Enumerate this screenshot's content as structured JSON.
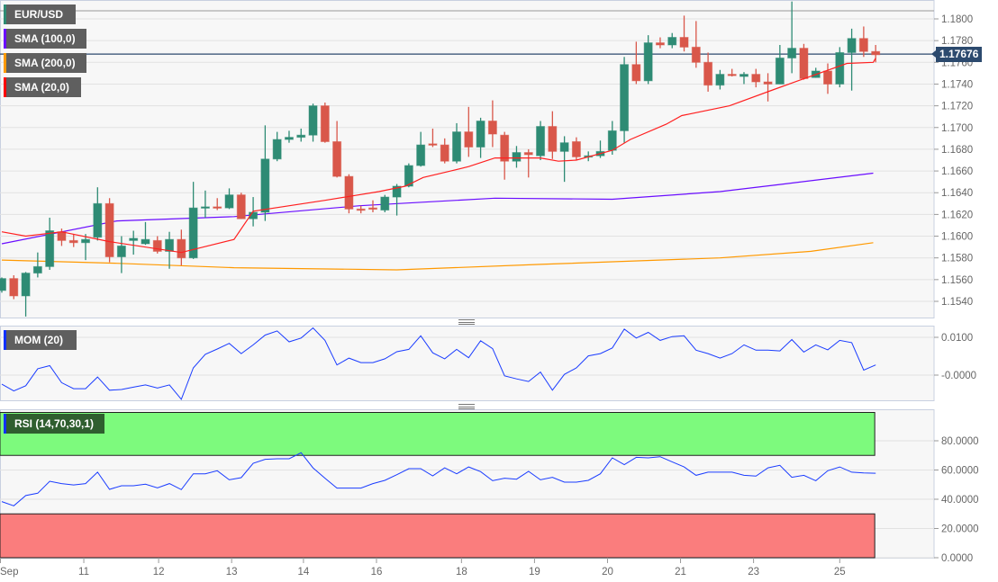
{
  "legend": {
    "pair": {
      "label": "EUR/USD",
      "color": "#2e8b74"
    },
    "sma100": {
      "label": "SMA (100,0)",
      "color": "#6a0dff"
    },
    "sma200": {
      "label": "SMA (200,0)",
      "color": "#ff9900"
    },
    "sma20": {
      "label": "SMA (20,0)",
      "color": "#ff0000"
    },
    "mom": {
      "label": "MOM (20)",
      "color": "#1030ff"
    },
    "rsi": {
      "label": "RSI (14,70,30,1)",
      "color": "#1030ff"
    }
  },
  "current_price": "1.17676",
  "chart_data": {
    "type": "candlestick",
    "title": "EUR/USD",
    "colors": {
      "up": "#2e8b74",
      "down": "#d9574a",
      "sma20": "#ff2020",
      "sma100": "#6a0dff",
      "sma200": "#ff9900",
      "mom": "#1a3cff",
      "rsi": "#1a3cff",
      "overbought": "#7dfa7d",
      "oversold": "#fa7d7d",
      "price_line": "#2c4a6e"
    },
    "price_axis": {
      "ylim": [
        1.153,
        1.1815
      ],
      "ticks": [
        "1.1800",
        "1.1780",
        "1.1760",
        "1.1740",
        "1.1720",
        "1.1700",
        "1.1680",
        "1.1660",
        "1.1640",
        "1.1620",
        "1.1600",
        "1.1580",
        "1.1560",
        "1.1540"
      ]
    },
    "high_line": 1.18075,
    "last_close": 1.17676,
    "x_ticks": [
      {
        "label": "Sep",
        "at": -0.15
      },
      {
        "label": "11",
        "at": 6.85
      },
      {
        "label": "12",
        "at": 13.1
      },
      {
        "label": "13",
        "at": 19.2
      },
      {
        "label": "14",
        "at": 25.2
      },
      {
        "label": "16",
        "at": 31.3
      },
      {
        "label": "18",
        "at": 38.4
      },
      {
        "label": "19",
        "at": 44.5
      },
      {
        "label": "20",
        "at": 50.6
      },
      {
        "label": "21",
        "at": 56.7
      },
      {
        "label": "23",
        "at": 62.8
      },
      {
        "label": "25",
        "at": 70
      }
    ],
    "ohlc": [
      [
        1.155,
        1.1562,
        1.1548,
        1.1561
      ],
      [
        1.1561,
        1.1564,
        1.1542,
        1.1545
      ],
      [
        1.1545,
        1.1567,
        1.1526,
        1.1566
      ],
      [
        1.1566,
        1.1585,
        1.1562,
        1.1572
      ],
      [
        1.1572,
        1.1617,
        1.1569,
        1.1605
      ],
      [
        1.1604,
        1.1607,
        1.1591,
        1.1596
      ],
      [
        1.1596,
        1.1602,
        1.159,
        1.1594
      ],
      [
        1.1594,
        1.1602,
        1.1578,
        1.1597
      ],
      [
        1.1599,
        1.1645,
        1.1596,
        1.163
      ],
      [
        1.163,
        1.1635,
        1.1576,
        1.1581
      ],
      [
        1.1581,
        1.16,
        1.1566,
        1.1591
      ],
      [
        1.1596,
        1.1605,
        1.1583,
        1.1598
      ],
      [
        1.1593,
        1.1613,
        1.1592,
        1.1597
      ],
      [
        1.1596,
        1.16,
        1.1584,
        1.1586
      ],
      [
        1.1586,
        1.1604,
        1.157,
        1.1597
      ],
      [
        1.1597,
        1.1606,
        1.1573,
        1.158
      ],
      [
        1.158,
        1.165,
        1.1579,
        1.1626
      ],
      [
        1.1626,
        1.1642,
        1.1617,
        1.1627
      ],
      [
        1.1627,
        1.1635,
        1.1624,
        1.1626
      ],
      [
        1.1626,
        1.1644,
        1.1625,
        1.1638
      ],
      [
        1.1638,
        1.164,
        1.1616,
        1.1616
      ],
      [
        1.1616,
        1.1636,
        1.1609,
        1.1622
      ],
      [
        1.1622,
        1.1702,
        1.1614,
        1.1671
      ],
      [
        1.1671,
        1.1696,
        1.1669,
        1.1689
      ],
      [
        1.1689,
        1.1697,
        1.1686,
        1.1691
      ],
      [
        1.1691,
        1.1699,
        1.1687,
        1.1693
      ],
      [
        1.1693,
        1.1722,
        1.1687,
        1.172
      ],
      [
        1.172,
        1.1723,
        1.1686,
        1.1687
      ],
      [
        1.1687,
        1.1706,
        1.1654,
        1.1655
      ],
      [
        1.1655,
        1.1657,
        1.1621,
        1.1625
      ],
      [
        1.1625,
        1.1628,
        1.1621,
        1.1624
      ],
      [
        1.1626,
        1.1633,
        1.1622,
        1.1625
      ],
      [
        1.1624,
        1.1638,
        1.1622,
        1.1636
      ],
      [
        1.1636,
        1.1648,
        1.1619,
        1.1646
      ],
      [
        1.1646,
        1.1667,
        1.1645,
        1.1665
      ],
      [
        1.1665,
        1.1696,
        1.1664,
        1.1684
      ],
      [
        1.1685,
        1.1699,
        1.1682,
        1.1684
      ],
      [
        1.1684,
        1.169,
        1.1667,
        1.1669
      ],
      [
        1.1669,
        1.1704,
        1.1667,
        1.1696
      ],
      [
        1.1696,
        1.1719,
        1.1673,
        1.1682
      ],
      [
        1.1682,
        1.1709,
        1.1672,
        1.1706
      ],
      [
        1.1706,
        1.1725,
        1.1682,
        1.1694
      ],
      [
        1.1693,
        1.1696,
        1.1652,
        1.1669
      ],
      [
        1.1669,
        1.1683,
        1.1663,
        1.1677
      ],
      [
        1.1677,
        1.168,
        1.1654,
        1.1675
      ],
      [
        1.1674,
        1.1706,
        1.167,
        1.1701
      ],
      [
        1.1701,
        1.1715,
        1.1671,
        1.1678
      ],
      [
        1.1678,
        1.1692,
        1.165,
        1.1686
      ],
      [
        1.1687,
        1.1691,
        1.167,
        1.1673
      ],
      [
        1.1673,
        1.1678,
        1.1669,
        1.1674
      ],
      [
        1.1674,
        1.1688,
        1.1672,
        1.1678
      ],
      [
        1.1679,
        1.1706,
        1.1675,
        1.1697
      ],
      [
        1.1697,
        1.1765,
        1.1686,
        1.1758
      ],
      [
        1.1758,
        1.1779,
        1.174,
        1.1743
      ],
      [
        1.1743,
        1.1785,
        1.174,
        1.1778
      ],
      [
        1.1778,
        1.1783,
        1.1773,
        1.1776
      ],
      [
        1.1776,
        1.1787,
        1.1773,
        1.1783
      ],
      [
        1.1783,
        1.1803,
        1.177,
        1.1774
      ],
      [
        1.1774,
        1.1798,
        1.1755,
        1.176
      ],
      [
        1.176,
        1.1769,
        1.1733,
        1.1739
      ],
      [
        1.1739,
        1.1753,
        1.1735,
        1.1749
      ],
      [
        1.1749,
        1.1754,
        1.1747,
        1.1748
      ],
      [
        1.1747,
        1.1751,
        1.174,
        1.1749
      ],
      [
        1.1749,
        1.1754,
        1.1737,
        1.1742
      ],
      [
        1.1742,
        1.175,
        1.1724,
        1.174
      ],
      [
        1.174,
        1.1776,
        1.174,
        1.1764
      ],
      [
        1.1764,
        1.1816,
        1.175,
        1.1773
      ],
      [
        1.1773,
        1.1777,
        1.1744,
        1.1745
      ],
      [
        1.1746,
        1.1755,
        1.1746,
        1.1752
      ],
      [
        1.1752,
        1.1759,
        1.1731,
        1.174
      ],
      [
        1.174,
        1.1774,
        1.1737,
        1.1769
      ],
      [
        1.1769,
        1.1791,
        1.1734,
        1.1782
      ],
      [
        1.1782,
        1.1793,
        1.1765,
        1.177
      ],
      [
        1.177,
        1.1776,
        1.176,
        1.1767
      ]
    ],
    "sma20": [
      [
        0,
        1.1604
      ],
      [
        2,
        1.16
      ],
      [
        5,
        1.1604
      ],
      [
        9,
        1.1595
      ],
      [
        15,
        1.1585
      ],
      [
        19.4,
        1.1597
      ],
      [
        21,
        1.1623
      ],
      [
        27,
        1.1633
      ],
      [
        31.5,
        1.1641
      ],
      [
        33.7,
        1.1646
      ],
      [
        35.2,
        1.1654
      ],
      [
        37.5,
        1.166
      ],
      [
        39,
        1.1664
      ],
      [
        41.2,
        1.1672
      ],
      [
        45,
        1.1672
      ],
      [
        46.5,
        1.1669
      ],
      [
        48,
        1.167
      ],
      [
        51,
        1.1679
      ],
      [
        52.5,
        1.1689
      ],
      [
        55.5,
        1.1703
      ],
      [
        56.8,
        1.1711
      ],
      [
        60.8,
        1.172
      ],
      [
        64.5,
        1.1735
      ],
      [
        66,
        1.1741
      ],
      [
        70.6,
        1.1759
      ],
      [
        72.8,
        1.176
      ],
      [
        73,
        1.1764
      ]
    ],
    "sma100": [
      [
        0,
        1.1593
      ],
      [
        9.6,
        1.1614
      ],
      [
        19.4,
        1.1618
      ],
      [
        29.9,
        1.1628
      ],
      [
        41.2,
        1.1635
      ],
      [
        51,
        1.1634
      ],
      [
        60,
        1.1641
      ],
      [
        65.3,
        1.1648
      ],
      [
        72.8,
        1.1658
      ]
    ],
    "sma200": [
      [
        0,
        1.1578
      ],
      [
        9.6,
        1.1575
      ],
      [
        19.4,
        1.1571
      ],
      [
        33,
        1.1569
      ],
      [
        45,
        1.1574
      ],
      [
        60,
        1.158
      ],
      [
        67.6,
        1.1586
      ],
      [
        72.8,
        1.1594
      ]
    ],
    "mom": {
      "ylim": [
        -0.0068,
        0.0132
      ],
      "ticks": [
        {
          "label": "0.0100",
          "value": 0.01
        },
        {
          "label": "-0.0000",
          "value": 0
        }
      ],
      "values": [
        -0.0024,
        -0.0042,
        -0.0028,
        0.0017,
        0.0025,
        -0.002,
        -0.0036,
        -0.0036,
        -0.0005,
        -0.004,
        -0.0038,
        -0.0032,
        -0.0026,
        -0.0034,
        -0.0026,
        -0.0064,
        0.0019,
        0.0055,
        0.0069,
        0.0084,
        0.0057,
        0.008,
        0.0106,
        0.0117,
        0.0088,
        0.0098,
        0.0125,
        0.0092,
        0.0027,
        0.0045,
        0.0033,
        0.0033,
        0.0043,
        0.0062,
        0.0068,
        0.0104,
        0.0059,
        0.0043,
        0.0068,
        0.0046,
        0.0091,
        0.007,
        -0.0002,
        -0.001,
        -0.0017,
        0.0008,
        -0.004,
        0.0002,
        0.0019,
        0.0051,
        0.0057,
        0.0072,
        0.0122,
        0.0098,
        0.0113,
        0.0092,
        0.0102,
        0.0104,
        0.0066,
        0.0057,
        0.0045,
        0.0057,
        0.008,
        0.0066,
        0.0066,
        0.0064,
        0.0094,
        0.0061,
        0.008,
        0.0067,
        0.0092,
        0.0086,
        0.0013,
        0.0027
      ]
    },
    "rsi": {
      "ylim": [
        0,
        100
      ],
      "overbought": 70,
      "oversold": 30,
      "ticks": [
        {
          "label": "80.0000",
          "value": 80
        },
        {
          "label": "60.0000",
          "value": 60
        },
        {
          "label": "40.0000",
          "value": 40
        },
        {
          "label": "20.0000",
          "value": 20
        },
        {
          "label": "0.0000",
          "value": 0
        }
      ],
      "values": [
        38.4,
        35.5,
        42.5,
        44.1,
        52.3,
        50.7,
        49.8,
        50.7,
        58.5,
        46.8,
        49.2,
        49.2,
        50.3,
        47.8,
        50.7,
        46.6,
        57.4,
        57.4,
        59.5,
        53.3,
        54.8,
        64.6,
        67.3,
        67.7,
        67.7,
        71.8,
        61.5,
        54.4,
        47.6,
        47.6,
        47.6,
        50.7,
        52.9,
        56.8,
        60.9,
        60.9,
        56.0,
        61.5,
        57.4,
        62.1,
        58.9,
        52.7,
        54.4,
        53.7,
        59.1,
        53.3,
        55.0,
        51.7,
        51.7,
        52.9,
        57.4,
        68.3,
        63.6,
        68.7,
        68.3,
        69.1,
        65.6,
        62.1,
        56.4,
        58.5,
        58.5,
        58.5,
        56.4,
        55.8,
        61.5,
        63.2,
        55.0,
        56.4,
        52.7,
        59.5,
        62.1,
        58.5,
        58.0,
        57.8
      ]
    }
  }
}
